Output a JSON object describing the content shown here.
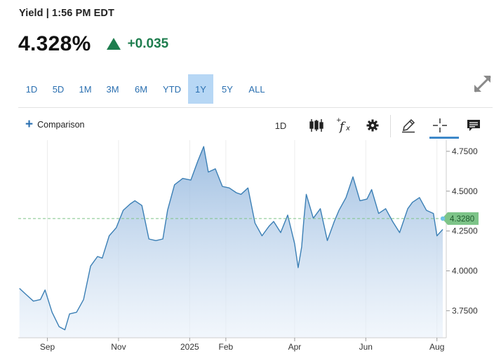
{
  "header": {
    "title": "Yield | 1:56 PM EDT"
  },
  "quote": {
    "price": "4.328%",
    "change": "+0.035",
    "direction": "up",
    "change_color": "#1e7d4e"
  },
  "ranges": [
    {
      "label": "1D",
      "active": false
    },
    {
      "label": "5D",
      "active": false
    },
    {
      "label": "1M",
      "active": false
    },
    {
      "label": "3M",
      "active": false
    },
    {
      "label": "6M",
      "active": false
    },
    {
      "label": "YTD",
      "active": false
    },
    {
      "label": "1Y",
      "active": true
    },
    {
      "label": "5Y",
      "active": false
    },
    {
      "label": "ALL",
      "active": false
    }
  ],
  "toolbar": {
    "comparison_label": "Comparison",
    "interval_label": "1D",
    "icons": [
      "candlestick-icon",
      "fx-indicator-icon",
      "gear-icon",
      "pencil-icon",
      "crosshair-icon",
      "comment-icon",
      "expand-icon"
    ]
  },
  "colors": {
    "accent": "#2a6fb0",
    "active_range_bg": "#b7d7f5",
    "line": "#3b7fb5",
    "last_value_bg": "#7dc488"
  },
  "chart_data": {
    "type": "area",
    "x": [
      "2024-08-08",
      "2024-08-14",
      "2024-08-20",
      "2024-08-26",
      "2024-08-30",
      "2024-09-05",
      "2024-09-11",
      "2024-09-16",
      "2024-09-20",
      "2024-09-26",
      "2024-10-02",
      "2024-10-08",
      "2024-10-14",
      "2024-10-18",
      "2024-10-24",
      "2024-10-30",
      "2024-11-05",
      "2024-11-11",
      "2024-11-15",
      "2024-11-21",
      "2024-11-27",
      "2024-12-03",
      "2024-12-09",
      "2024-12-13",
      "2024-12-19",
      "2024-12-26",
      "2025-01-02",
      "2025-01-08",
      "2025-01-13",
      "2025-01-17",
      "2025-01-23",
      "2025-01-29",
      "2025-02-04",
      "2025-02-10",
      "2025-02-14",
      "2025-02-20",
      "2025-02-26",
      "2025-03-04",
      "2025-03-10",
      "2025-03-14",
      "2025-03-20",
      "2025-03-26",
      "2025-04-01",
      "2025-04-04",
      "2025-04-07",
      "2025-04-09",
      "2025-04-11",
      "2025-04-17",
      "2025-04-23",
      "2025-04-29",
      "2025-05-05",
      "2025-05-09",
      "2025-05-15",
      "2025-05-21",
      "2025-05-27",
      "2025-06-02",
      "2025-06-06",
      "2025-06-12",
      "2025-06-18",
      "2025-06-24",
      "2025-06-30",
      "2025-07-07",
      "2025-07-11",
      "2025-07-17",
      "2025-07-23",
      "2025-07-29",
      "2025-08-01",
      "2025-08-06"
    ],
    "values": [
      3.89,
      3.85,
      3.81,
      3.82,
      3.88,
      3.74,
      3.65,
      3.63,
      3.73,
      3.74,
      3.82,
      4.03,
      4.09,
      4.08,
      4.22,
      4.27,
      4.38,
      4.42,
      4.44,
      4.41,
      4.2,
      4.19,
      4.2,
      4.38,
      4.54,
      4.58,
      4.57,
      4.69,
      4.78,
      4.62,
      4.64,
      4.53,
      4.52,
      4.49,
      4.48,
      4.52,
      4.3,
      4.22,
      4.28,
      4.31,
      4.24,
      4.35,
      4.17,
      4.02,
      4.15,
      4.33,
      4.48,
      4.33,
      4.39,
      4.19,
      4.31,
      4.38,
      4.46,
      4.59,
      4.44,
      4.45,
      4.51,
      4.36,
      4.39,
      4.31,
      4.24,
      4.39,
      4.43,
      4.46,
      4.38,
      4.36,
      4.22,
      4.26
    ],
    "last_value": 4.328,
    "last_value_label": "4.3280",
    "xticks": [
      {
        "date": "2024-09-01",
        "label": "Sep"
      },
      {
        "date": "2024-11-01",
        "label": "Nov"
      },
      {
        "date": "2025-01-01",
        "label": "2025"
      },
      {
        "date": "2025-02-01",
        "label": "Feb"
      },
      {
        "date": "2025-04-01",
        "label": "Apr"
      },
      {
        "date": "2025-06-01",
        "label": "Jun"
      },
      {
        "date": "2025-08-01",
        "label": "Aug"
      }
    ],
    "yticks": [
      {
        "value": 3.75,
        "label": "3.7500"
      },
      {
        "value": 4.0,
        "label": "4.0000"
      },
      {
        "value": 4.25,
        "label": "4.2500"
      },
      {
        "value": 4.5,
        "label": "4.5000"
      },
      {
        "value": 4.75,
        "label": "4.7500"
      }
    ],
    "xlim": [
      "2024-08-07",
      "2025-08-09"
    ],
    "ylim": [
      3.58,
      4.82
    ],
    "grid": "vertical",
    "reference_line": 4.328
  }
}
